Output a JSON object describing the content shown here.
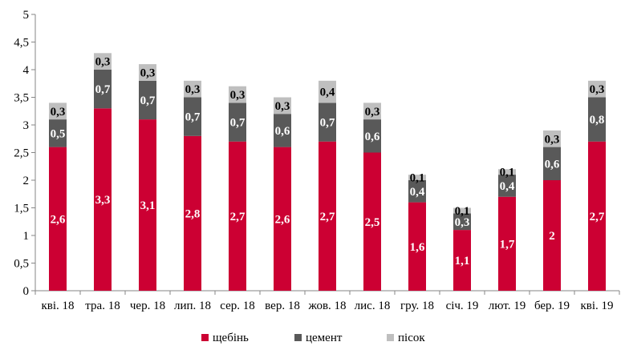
{
  "chart_data": {
    "type": "bar",
    "stacked": true,
    "categories": [
      "кві. 18",
      "тра. 18",
      "чер. 18",
      "лип. 18",
      "сер. 18",
      "вер. 18",
      "жов. 18",
      "лис. 18",
      "гру. 18",
      "січ. 19",
      "лют. 19",
      "бер. 19",
      "кві. 19"
    ],
    "series": [
      {
        "name": "щебінь",
        "color": "#cc0033",
        "values": [
          2.6,
          3.3,
          3.1,
          2.8,
          2.7,
          2.6,
          2.7,
          2.5,
          1.6,
          1.1,
          1.7,
          2,
          2.7
        ],
        "labels": [
          "2,6",
          "3,3",
          "3,1",
          "2,8",
          "2,7",
          "2,6",
          "2,7",
          "2,5",
          "1,6",
          "1,1",
          "1,7",
          "2",
          "2,7"
        ]
      },
      {
        "name": "цемент",
        "color": "#595959",
        "values": [
          0.5,
          0.7,
          0.7,
          0.7,
          0.7,
          0.6,
          0.7,
          0.6,
          0.4,
          0.3,
          0.4,
          0.6,
          0.8
        ],
        "labels": [
          "0,5",
          "0,7",
          "0,7",
          "0,7",
          "0,7",
          "0,6",
          "0,7",
          "0,6",
          "0,4",
          "0,3",
          "0,4",
          "0,6",
          "0,8"
        ]
      },
      {
        "name": "пісок",
        "color": "#bfbfbf",
        "values": [
          0.3,
          0.3,
          0.3,
          0.3,
          0.3,
          0.3,
          0.4,
          0.3,
          0.1,
          0.1,
          0.1,
          0.3,
          0.3
        ],
        "labels": [
          "0,3",
          "0,3",
          "0,3",
          "0,3",
          "0,3",
          "0,3",
          "0,4",
          "0,3",
          "0,1",
          "0,1",
          "0,1",
          "0,3",
          "0,3"
        ]
      }
    ],
    "yticks": [
      "0",
      "0,5",
      "1",
      "1,5",
      "2",
      "2,5",
      "3",
      "3,5",
      "4",
      "4,5",
      "5"
    ],
    "ylim": [
      0,
      5
    ],
    "grid": false,
    "legend_position": "bottom"
  }
}
